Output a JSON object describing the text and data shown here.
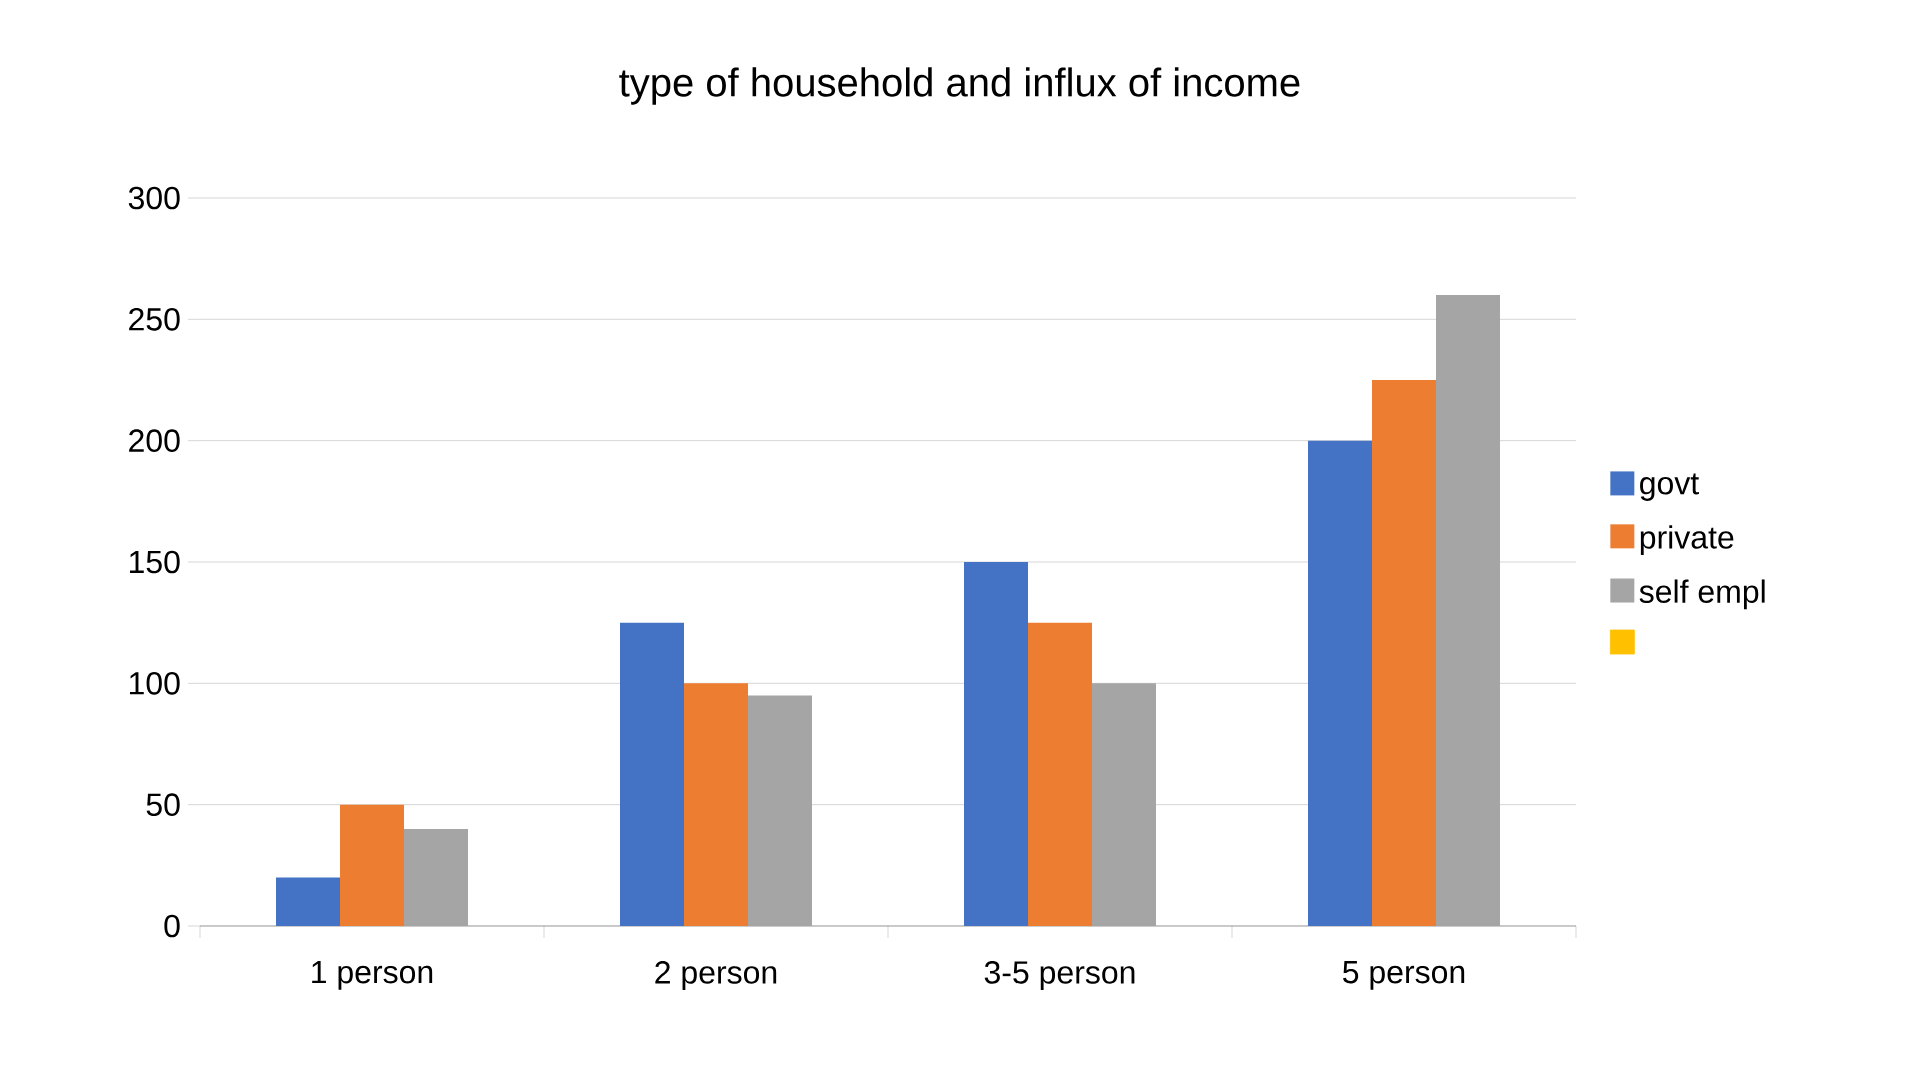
{
  "chart_data": {
    "type": "bar",
    "title": "type of household and influx of income",
    "categories": [
      "1  person",
      "2 person",
      "3-5 person",
      "5 person"
    ],
    "series": [
      {
        "name": "govt",
        "color": "#4472c4",
        "values": [
          20,
          125,
          150,
          200
        ]
      },
      {
        "name": "private",
        "color": "#ed7d31",
        "values": [
          50,
          100,
          125,
          225
        ]
      },
      {
        "name": "self empl",
        "color": "#a5a5a5",
        "values": [
          40,
          95,
          100,
          260
        ]
      },
      {
        "color": "#ffc000",
        "values": [
          null,
          null,
          null,
          null
        ]
      }
    ],
    "ylim": [
      0,
      300
    ],
    "yticks": [
      0,
      50,
      100,
      150,
      200,
      250,
      300
    ],
    "grid": "y",
    "legend": "right"
  }
}
